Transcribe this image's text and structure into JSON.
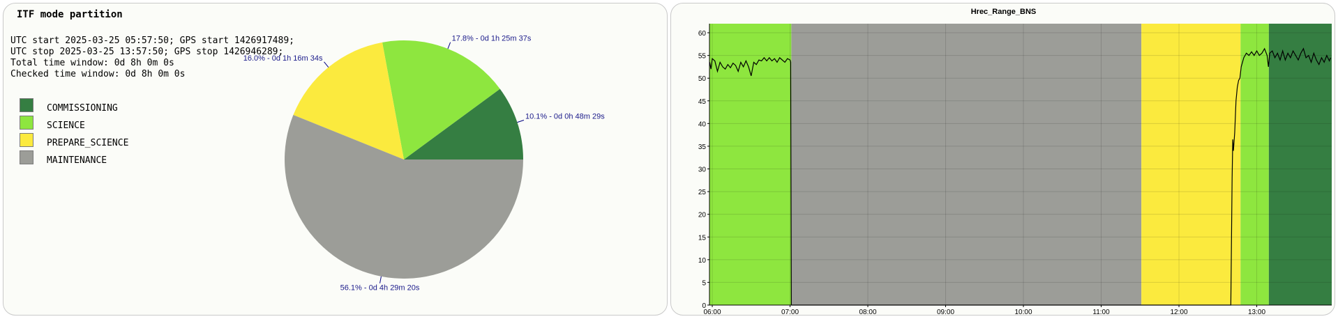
{
  "pie_panel": {
    "title": "ITF mode partition",
    "info": [
      "UTC start 2025-03-25 05:57:50; GPS start 1426917489;",
      "UTC stop 2025-03-25 13:57:50; GPS stop 1426946289;",
      "Total time window: 0d 8h 0m 0s",
      "Checked time window: 0d 8h 0m 0s"
    ],
    "legend": [
      {
        "label": "COMMISSIONING",
        "color": "#357e42"
      },
      {
        "label": "SCIENCE",
        "color": "#8ee63f"
      },
      {
        "label": "PREPARE_SCIENCE",
        "color": "#fbea3e"
      },
      {
        "label": "MAINTENANCE",
        "color": "#9c9d98"
      }
    ]
  },
  "chart_data": [
    {
      "type": "pie",
      "title": "ITF mode partition",
      "slices": [
        {
          "label": "COMMISSIONING",
          "value": 10.1,
          "annotation": "10.1% - 0d 0h 48m 29s",
          "color": "#357e42"
        },
        {
          "label": "SCIENCE",
          "value": 17.8,
          "annotation": "17.8% - 0d 1h 25m 37s",
          "color": "#8ee63f"
        },
        {
          "label": "PREPARE_SCIENCE",
          "value": 16.0,
          "annotation": "16.0% - 0d 1h 16m 34s",
          "color": "#fbea3e"
        },
        {
          "label": "MAINTENANCE",
          "value": 56.1,
          "annotation": "56.1% - 0d 4h 29m 20s",
          "color": "#9c9d98"
        }
      ]
    },
    {
      "type": "line",
      "title": "Hrec_Range_BNS",
      "x_ticks": [
        "06:00",
        "07:00",
        "08:00",
        "09:00",
        "10:00",
        "11:00",
        "12:00",
        "13:00"
      ],
      "xlim": [
        "05:57:50",
        "13:57:50"
      ],
      "ylim": [
        0,
        62
      ],
      "y_ticks": [
        0,
        5,
        10,
        15,
        20,
        25,
        30,
        35,
        40,
        45,
        50,
        55,
        60
      ],
      "grid": true,
      "bands": [
        {
          "mode": "SCIENCE",
          "start": "05:57:50",
          "end": "07:01:00",
          "color": "#8ee63f"
        },
        {
          "mode": "MAINTENANCE",
          "start": "07:01:00",
          "end": "11:31:00",
          "color": "#9c9d98"
        },
        {
          "mode": "PREPARE_SCIENCE",
          "start": "11:31:00",
          "end": "12:47:30",
          "color": "#fbea3e"
        },
        {
          "mode": "SCIENCE",
          "start": "12:47:30",
          "end": "13:09:20",
          "color": "#8ee63f"
        },
        {
          "mode": "COMMISSIONING",
          "start": "13:09:20",
          "end": "13:57:50",
          "color": "#357e42"
        }
      ],
      "series": [
        {
          "color": "#000000",
          "points": [
            [
              "05:58",
              53.5
            ],
            [
              "05:59",
              52.0
            ],
            [
              "06:00",
              54.3
            ],
            [
              "06:02",
              53.8
            ],
            [
              "06:04",
              51.5
            ],
            [
              "06:06",
              53.5
            ],
            [
              "06:08",
              52.5
            ],
            [
              "06:10",
              52.0
            ],
            [
              "06:12",
              53.0
            ],
            [
              "06:14",
              52.3
            ],
            [
              "06:16",
              53.3
            ],
            [
              "06:18",
              52.8
            ],
            [
              "06:20",
              51.5
            ],
            [
              "06:22",
              53.5
            ],
            [
              "06:24",
              52.5
            ],
            [
              "06:26",
              53.8
            ],
            [
              "06:28",
              52.5
            ],
            [
              "06:30",
              50.5
            ],
            [
              "06:32",
              53.5
            ],
            [
              "06:34",
              53.0
            ],
            [
              "06:36",
              54.0
            ],
            [
              "06:38",
              53.8
            ],
            [
              "06:40",
              54.5
            ],
            [
              "06:42",
              53.8
            ],
            [
              "06:44",
              54.5
            ],
            [
              "06:46",
              53.8
            ],
            [
              "06:48",
              54.3
            ],
            [
              "06:50",
              53.5
            ],
            [
              "06:52",
              54.5
            ],
            [
              "06:54",
              54.0
            ],
            [
              "06:56",
              53.5
            ],
            [
              "06:58",
              54.3
            ],
            [
              "07:00",
              54.0
            ],
            [
              "07:00:30",
              53.5
            ],
            [
              "07:01",
              0
            ],
            [
              "12:40",
              0
            ],
            [
              "12:41",
              28.0
            ],
            [
              "12:41:30",
              36.5
            ],
            [
              "12:42",
              34.0
            ],
            [
              "12:43",
              38.0
            ],
            [
              "12:44",
              45.0
            ],
            [
              "12:45",
              48.0
            ],
            [
              "12:46",
              49.5
            ],
            [
              "12:47",
              50.0
            ],
            [
              "12:48",
              52.5
            ],
            [
              "12:50",
              54.5
            ],
            [
              "12:52",
              55.5
            ],
            [
              "12:54",
              55.0
            ],
            [
              "12:56",
              55.8
            ],
            [
              "12:58",
              55.0
            ],
            [
              "13:00",
              56.0
            ],
            [
              "13:02",
              55.0
            ],
            [
              "13:04",
              55.5
            ],
            [
              "13:06",
              56.5
            ],
            [
              "13:08",
              55.0
            ],
            [
              "13:09",
              52.5
            ],
            [
              "13:10",
              55.5
            ],
            [
              "13:12",
              56.0
            ],
            [
              "13:14",
              54.5
            ],
            [
              "13:16",
              55.5
            ],
            [
              "13:18",
              54.0
            ],
            [
              "13:20",
              56.0
            ],
            [
              "13:22",
              54.0
            ],
            [
              "13:24",
              55.5
            ],
            [
              "13:26",
              54.5
            ],
            [
              "13:28",
              56.0
            ],
            [
              "13:30",
              55.0
            ],
            [
              "13:32",
              54.0
            ],
            [
              "13:34",
              55.5
            ],
            [
              "13:36",
              56.5
            ],
            [
              "13:38",
              54.5
            ],
            [
              "13:40",
              55.0
            ],
            [
              "13:42",
              53.5
            ],
            [
              "13:44",
              55.5
            ],
            [
              "13:46",
              54.0
            ],
            [
              "13:48",
              53.0
            ],
            [
              "13:50",
              54.5
            ],
            [
              "13:52",
              53.5
            ],
            [
              "13:54",
              55.0
            ],
            [
              "13:56",
              53.8
            ],
            [
              "13:57",
              54.5
            ]
          ]
        }
      ]
    }
  ]
}
